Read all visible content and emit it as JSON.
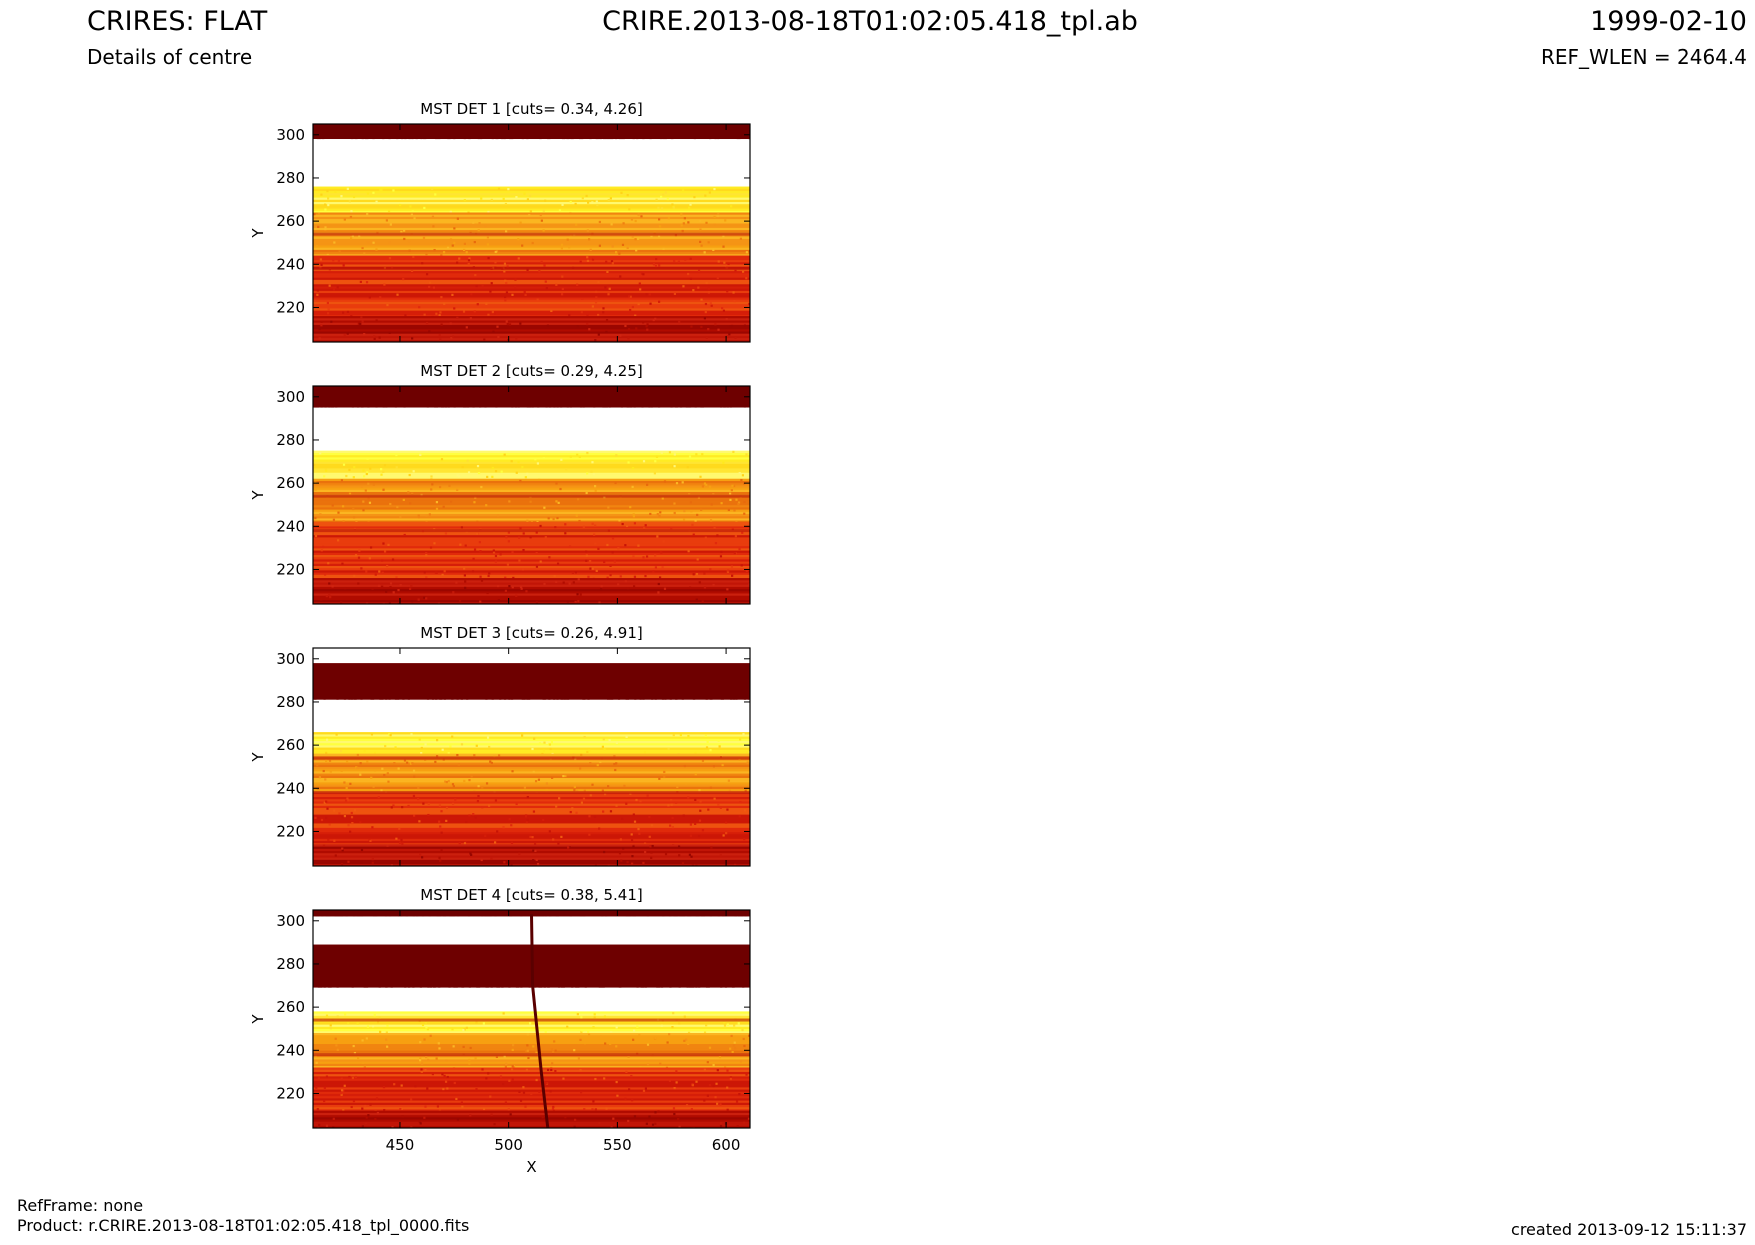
{
  "header": {
    "title_left": "CRIRES: FLAT",
    "subtitle_left": "Details of centre",
    "title_center": "CRIRE.2013-08-18T01:02:05.418_tpl.ab",
    "title_right": "1999-02-10",
    "subtitle_right": "REF_WLEN = 2464.4"
  },
  "footer": {
    "refframe": "RefFrame: none",
    "product": "Product: r.CRIRE.2013-08-18T01:02:05.418_tpl_0000.fits",
    "created": "created 2013-09-12 15:11:37"
  },
  "colors": {
    "colormap": "hot",
    "dark": "#700000",
    "red": "#e0200e",
    "orange": "#f06a0a",
    "yellow": "#ffe020",
    "white": "#ffffff"
  },
  "chart_data": [
    {
      "type": "heatmap",
      "title": "MST DET 1 [cuts= 0.34, 4.26]",
      "ylabel": "Y",
      "xlabel": "",
      "xlim": [
        410,
        611
      ],
      "ylim": [
        204,
        305
      ],
      "yticks": [
        "300",
        "280",
        "260",
        "240",
        "220"
      ],
      "xticks": [],
      "bands": [
        {
          "y": [
            298,
            305
          ],
          "level": "dark"
        },
        {
          "y": [
            276,
            298
          ],
          "level": "white"
        },
        {
          "y": [
            264,
            276
          ],
          "level": "yellow"
        },
        {
          "y": [
            244,
            264
          ],
          "level": "orange"
        },
        {
          "y": [
            216,
            244
          ],
          "level": "red"
        },
        {
          "y": [
            204,
            216
          ],
          "level": "dark-red"
        }
      ]
    },
    {
      "type": "heatmap",
      "title": "MST DET 2 [cuts= 0.29, 4.25]",
      "ylabel": "Y",
      "xlabel": "",
      "xlim": [
        410,
        611
      ],
      "ylim": [
        204,
        305
      ],
      "yticks": [
        "300",
        "280",
        "260",
        "240",
        "220"
      ],
      "xticks": [],
      "bands": [
        {
          "y": [
            295,
            305
          ],
          "level": "dark"
        },
        {
          "y": [
            275,
            295
          ],
          "level": "white"
        },
        {
          "y": [
            262,
            275
          ],
          "level": "yellow"
        },
        {
          "y": [
            242,
            262
          ],
          "level": "orange"
        },
        {
          "y": [
            216,
            242
          ],
          "level": "red"
        },
        {
          "y": [
            204,
            216
          ],
          "level": "dark-red"
        }
      ]
    },
    {
      "type": "heatmap",
      "title": "MST DET 3 [cuts= 0.26, 4.91]",
      "ylabel": "Y",
      "xlabel": "",
      "xlim": [
        410,
        611
      ],
      "ylim": [
        204,
        305
      ],
      "yticks": [
        "300",
        "280",
        "260",
        "240",
        "220"
      ],
      "xticks": [],
      "bands": [
        {
          "y": [
            298,
            305
          ],
          "level": "white"
        },
        {
          "y": [
            281,
            298
          ],
          "level": "dark"
        },
        {
          "y": [
            266,
            281
          ],
          "level": "white"
        },
        {
          "y": [
            256,
            266
          ],
          "level": "yellow"
        },
        {
          "y": [
            238,
            256
          ],
          "level": "orange"
        },
        {
          "y": [
            214,
            238
          ],
          "level": "red"
        },
        {
          "y": [
            204,
            214
          ],
          "level": "dark-red"
        }
      ]
    },
    {
      "type": "heatmap",
      "title": "MST DET 4 [cuts= 0.38, 5.41]",
      "ylabel": "Y",
      "xlabel": "X",
      "xlim": [
        410,
        611
      ],
      "ylim": [
        204,
        305
      ],
      "yticks": [
        "300",
        "280",
        "260",
        "240",
        "220"
      ],
      "xticks": [
        "450",
        "500",
        "550",
        "600"
      ],
      "bands": [
        {
          "y": [
            302,
            305
          ],
          "level": "dark"
        },
        {
          "y": [
            289,
            302
          ],
          "level": "white"
        },
        {
          "y": [
            269,
            289
          ],
          "level": "dark"
        },
        {
          "y": [
            258,
            269
          ],
          "level": "white"
        },
        {
          "y": [
            248,
            258
          ],
          "level": "yellow"
        },
        {
          "y": [
            232,
            248
          ],
          "level": "orange"
        },
        {
          "y": [
            212,
            232
          ],
          "level": "red"
        },
        {
          "y": [
            204,
            212
          ],
          "level": "dark-red"
        }
      ]
    }
  ]
}
